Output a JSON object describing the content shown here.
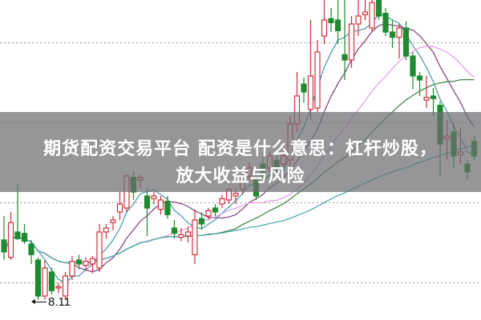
{
  "overlay": {
    "line1": "期货配资交易平台 配资是什么意思：杠杆炒股，",
    "line2": "放大收益与风险"
  },
  "chart_data": {
    "type": "candlestick",
    "title": "",
    "low_annotation": "8.11",
    "ylim": [
      7.81,
      12.61
    ],
    "grid": "horizontal dotted",
    "gridlines": [
      11.97,
      10.77,
      9.57,
      8.37
    ],
    "candle_format": [
      "open",
      "high",
      "low",
      "close"
    ],
    "candles": [
      [
        9.01,
        9.37,
        8.71,
        8.83
      ],
      [
        8.75,
        9.43,
        8.71,
        9.27
      ],
      [
        9.13,
        9.85,
        9.01,
        9.03
      ],
      [
        9.11,
        9.25,
        8.95,
        8.99
      ],
      [
        8.95,
        9.01,
        8.65,
        8.79
      ],
      [
        8.71,
        8.75,
        8.11,
        8.17
      ],
      [
        8.17,
        8.71,
        8.11,
        8.59
      ],
      [
        8.53,
        8.59,
        8.19,
        8.25
      ],
      [
        8.29,
        8.37,
        8.21,
        8.31
      ],
      [
        8.17,
        8.53,
        8.11,
        8.47
      ],
      [
        8.47,
        8.77,
        8.41,
        8.69
      ],
      [
        8.71,
        8.79,
        8.57,
        8.65
      ],
      [
        8.63,
        8.75,
        8.55,
        8.69
      ],
      [
        8.65,
        8.77,
        8.51,
        8.73
      ],
      [
        8.59,
        9.25,
        8.53,
        9.13
      ],
      [
        9.13,
        9.25,
        9.03,
        9.19
      ],
      [
        9.27,
        9.37,
        9.15,
        9.31
      ],
      [
        9.43,
        9.73,
        9.31,
        9.55
      ],
      [
        9.49,
        9.99,
        9.43,
        9.97
      ],
      [
        9.95,
        10.03,
        9.61,
        9.73
      ],
      [
        9.91,
        9.99,
        9.79,
        9.95
      ],
      [
        9.67,
        9.79,
        9.07,
        9.49
      ],
      [
        9.63,
        9.73,
        9.55,
        9.67
      ],
      [
        9.47,
        9.67,
        9.39,
        9.61
      ],
      [
        9.59,
        9.67,
        9.33,
        9.39
      ],
      [
        9.19,
        9.31,
        9.03,
        9.11
      ],
      [
        9.05,
        9.19,
        8.99,
        9.09
      ],
      [
        9.07,
        9.21,
        8.97,
        9.13
      ],
      [
        8.79,
        9.47,
        8.65,
        9.31
      ],
      [
        9.33,
        9.43,
        9.17,
        9.25
      ],
      [
        9.37,
        9.49,
        9.31,
        9.45
      ],
      [
        9.49,
        9.55,
        9.37,
        9.43
      ],
      [
        9.55,
        9.69,
        9.49,
        9.63
      ],
      [
        9.61,
        9.79,
        9.55,
        9.77
      ],
      [
        9.67,
        9.79,
        9.55,
        9.71
      ],
      [
        9.77,
        10.09,
        9.69,
        9.97
      ],
      [
        9.97,
        10.17,
        9.91,
        10.09
      ],
      [
        9.91,
        10.03,
        9.61,
        9.67
      ],
      [
        10.15,
        10.25,
        9.91,
        9.97
      ],
      [
        10.09,
        10.33,
        10.03,
        10.27
      ],
      [
        10.21,
        10.33,
        10.03,
        10.09
      ],
      [
        10.15,
        10.39,
        10.09,
        10.27
      ],
      [
        10.21,
        10.87,
        10.09,
        10.75
      ],
      [
        10.75,
        11.53,
        10.63,
        11.17
      ],
      [
        11.35,
        11.45,
        11.07,
        11.23
      ],
      [
        10.97,
        12.31,
        10.81,
        11.47
      ],
      [
        10.99,
        12.01,
        10.93,
        11.83
      ],
      [
        12.07,
        12.61,
        11.95,
        12.31
      ],
      [
        12.33,
        12.49,
        12.13,
        12.27
      ],
      [
        12.31,
        12.61,
        11.95,
        12.15
      ],
      [
        11.79,
        12.61,
        11.41,
        11.71
      ],
      [
        11.71,
        12.37,
        11.59,
        12.25
      ],
      [
        12.25,
        12.61,
        12.07,
        12.37
      ],
      [
        12.39,
        12.61,
        12.31,
        12.43
      ],
      [
        12.19,
        12.61,
        12.13,
        12.57
      ],
      [
        12.61,
        12.61,
        12.31,
        12.37
      ],
      [
        12.41,
        12.49,
        12.07,
        12.13
      ],
      [
        12.13,
        12.31,
        11.89,
        12.05
      ],
      [
        12.05,
        12.25,
        11.73,
        12.19
      ],
      [
        12.19,
        12.29,
        11.71,
        11.77
      ],
      [
        11.77,
        11.83,
        11.27,
        11.47
      ],
      [
        11.47,
        11.53,
        11.17,
        11.41
      ],
      [
        11.11,
        11.47,
        10.99,
        11.15
      ],
      [
        11.17,
        11.29,
        10.87,
        11.13
      ],
      [
        11.03,
        11.09,
        9.97,
        10.45
      ],
      [
        10.53,
        10.81,
        10.21,
        10.57
      ],
      [
        10.63,
        10.75,
        10.09,
        10.27
      ],
      [
        10.29,
        10.69,
        10.15,
        10.33
      ],
      [
        10.15,
        10.21,
        9.91,
        10.03
      ],
      [
        10.49,
        10.57,
        10.21,
        10.27
      ]
    ],
    "moving_averages": [
      {
        "period": 5,
        "color": "#3f9aa6"
      },
      {
        "period": 10,
        "color": "#7b3f72"
      },
      {
        "period": 20,
        "color": "#e29be3"
      },
      {
        "period": 30,
        "color": "#3d7d44"
      },
      {
        "period": 60,
        "color": "#45a6a8"
      }
    ],
    "colors": {
      "up": "#d2303c",
      "down": "#1f8a2f",
      "grid": "#9a9a9a"
    }
  }
}
